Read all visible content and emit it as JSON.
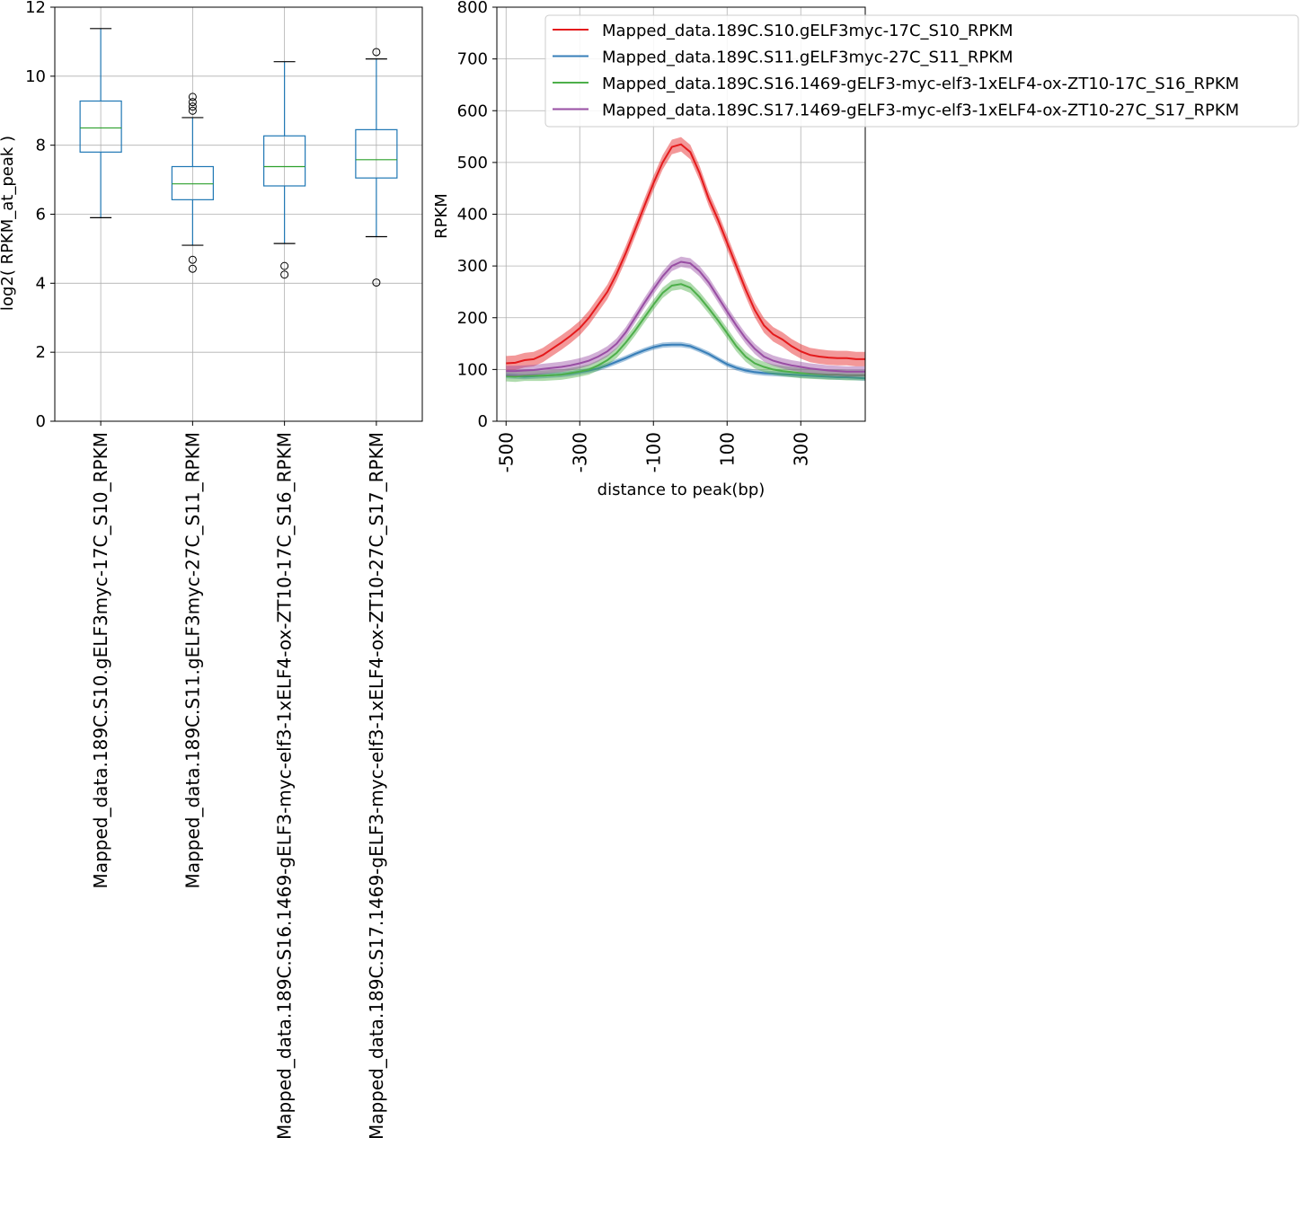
{
  "chart_data": [
    {
      "type": "box",
      "ylabel": "log2( RPKM_at_peak )",
      "ylim": [
        0,
        12
      ],
      "yticks": [
        "0",
        "2",
        "4",
        "6",
        "8",
        "10",
        "12"
      ],
      "grid": true,
      "categories": [
        "Mapped_data.189C.S10.gELF3myc-17C_S10_RPKM",
        "Mapped_data.189C.S11.gELF3myc-27C_S11_RPKM",
        "Mapped_data.189C.S16.1469-gELF3-myc-elf3-1xELF4-ox-ZT10-17C_S16_RPKM",
        "Mapped_data.189C.S17.1469-gELF3-myc-elf3-1xELF4-ox-ZT10-27C_S17_RPKM"
      ],
      "boxes": [
        {
          "whisker_low": 5.9,
          "q1": 7.8,
          "median": 8.5,
          "q3": 9.28,
          "whisker_high": 11.38,
          "outliers": []
        },
        {
          "whisker_low": 5.1,
          "q1": 6.42,
          "median": 6.88,
          "q3": 7.38,
          "whisker_high": 8.8,
          "outliers": [
            4.42,
            4.68,
            9.0,
            9.12,
            9.25,
            9.4
          ]
        },
        {
          "whisker_low": 5.15,
          "q1": 6.82,
          "median": 7.38,
          "q3": 8.27,
          "whisker_high": 10.42,
          "outliers": [
            4.25,
            4.5
          ]
        },
        {
          "whisker_low": 5.35,
          "q1": 7.05,
          "median": 7.58,
          "q3": 8.45,
          "whisker_high": 10.5,
          "outliers": [
            4.02,
            10.7
          ]
        }
      ],
      "colors": {
        "box": "#1f77b4",
        "median": "#2ca02c",
        "whisker_cap": "#000000"
      }
    },
    {
      "type": "line",
      "xlabel": "distance to peak(bp)",
      "ylabel": "RPKM",
      "xlim": [
        -525,
        475
      ],
      "ylim": [
        0,
        800
      ],
      "xticks": [
        "-500",
        "-300",
        "-100",
        "100",
        "300"
      ],
      "yticks": [
        "0",
        "100",
        "200",
        "300",
        "400",
        "500",
        "600",
        "700",
        "800"
      ],
      "grid": true,
      "legend_position": "top-right",
      "x": [
        -500,
        -475,
        -450,
        -425,
        -400,
        -375,
        -350,
        -325,
        -300,
        -275,
        -250,
        -225,
        -200,
        -175,
        -150,
        -125,
        -100,
        -75,
        -50,
        -25,
        0,
        25,
        50,
        75,
        100,
        125,
        150,
        175,
        200,
        225,
        250,
        275,
        300,
        325,
        350,
        375,
        400,
        425,
        450,
        475
      ],
      "series": [
        {
          "name": "Mapped_data.189C.S10.gELF3myc-17C_S10_RPKM",
          "color": "#e41a1c",
          "values": [
            112,
            113,
            118,
            120,
            128,
            140,
            152,
            165,
            180,
            200,
            225,
            250,
            285,
            325,
            370,
            415,
            460,
            500,
            530,
            535,
            520,
            480,
            430,
            390,
            345,
            300,
            255,
            215,
            185,
            168,
            158,
            145,
            135,
            128,
            125,
            123,
            122,
            122,
            120,
            120
          ],
          "band": 14
        },
        {
          "name": "Mapped_data.189C.S11.gELF3myc-27C_S11_RPKM",
          "color": "#377eb8",
          "values": [
            88,
            87,
            86,
            87,
            88,
            89,
            90,
            92,
            95,
            98,
            102,
            108,
            115,
            122,
            130,
            137,
            143,
            147,
            148,
            148,
            145,
            138,
            130,
            120,
            110,
            103,
            98,
            95,
            93,
            92,
            91,
            90,
            89,
            88,
            87,
            86,
            85,
            85,
            84,
            83
          ],
          "band": 5
        },
        {
          "name": "Mapped_data.189C.S16.1469-gELF3-myc-elf3-1xELF4-ox-ZT10-17C_S16_RPKM",
          "color": "#4daf4a",
          "values": [
            87,
            86,
            88,
            88,
            88,
            89,
            90,
            93,
            96,
            100,
            108,
            118,
            132,
            152,
            175,
            200,
            225,
            248,
            262,
            265,
            258,
            240,
            218,
            195,
            170,
            145,
            125,
            112,
            105,
            100,
            97,
            95,
            93,
            92,
            91,
            90,
            90,
            89,
            89,
            89
          ],
          "band": 10
        },
        {
          "name": "Mapped_data.189C.S17.1469-gELF3-myc-elf3-1xELF4-ox-ZT10-27C_S17_RPKM",
          "color": "#984ea3",
          "values": [
            97,
            97,
            98,
            99,
            101,
            103,
            105,
            108,
            112,
            117,
            125,
            135,
            150,
            172,
            200,
            228,
            255,
            280,
            300,
            308,
            305,
            290,
            268,
            240,
            212,
            185,
            160,
            140,
            125,
            117,
            112,
            108,
            105,
            102,
            100,
            98,
            97,
            96,
            96,
            96
          ],
          "band": 10
        }
      ]
    }
  ]
}
